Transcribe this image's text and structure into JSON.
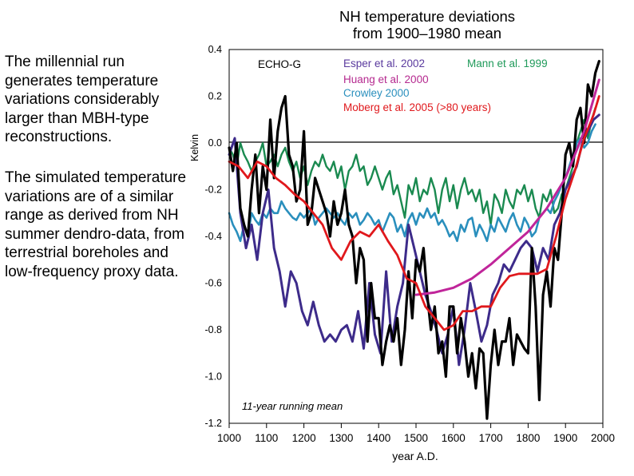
{
  "text": {
    "paragraph1": "The millennial run generates temperature variations considerably larger than  MBH-type reconstructions.",
    "paragraph2": "The simulated temperature variations are of a similar range as derived from NH summer dendro-data, from terrestrial boreholes and low-frequency proxy data."
  },
  "chart_data": {
    "type": "line",
    "title": "NH temperature deviations",
    "subtitle": "from 1900–1980 mean",
    "xlabel": "year A.D.",
    "ylabel": "Kelvin",
    "xlim": [
      1000,
      2000
    ],
    "ylim": [
      -1.2,
      0.4
    ],
    "xticks": [
      1000,
      1100,
      1200,
      1300,
      1400,
      1500,
      1600,
      1700,
      1800,
      1900,
      2000
    ],
    "yticks": [
      0.4,
      0.2,
      0.0,
      -0.2,
      -0.4,
      -0.6,
      -0.8,
      -1.0,
      -1.2
    ],
    "ytick_labels": [
      "0.4",
      "0.2",
      "0.0",
      "-0.2",
      "-0.4",
      "-0.6",
      "-0.8",
      "-1.0",
      "-1.2"
    ],
    "annotation": "11-year running mean",
    "series": [
      {
        "name": "ECHO-G",
        "color": "#000000",
        "legend_label": "ECHO-G",
        "legend_color": "#000000",
        "x": [
          1000,
          1010,
          1020,
          1030,
          1040,
          1050,
          1060,
          1070,
          1080,
          1090,
          1100,
          1110,
          1120,
          1130,
          1140,
          1150,
          1160,
          1170,
          1180,
          1190,
          1200,
          1210,
          1220,
          1230,
          1240,
          1250,
          1260,
          1270,
          1280,
          1290,
          1300,
          1310,
          1320,
          1330,
          1340,
          1350,
          1360,
          1370,
          1380,
          1390,
          1400,
          1410,
          1420,
          1430,
          1440,
          1450,
          1460,
          1470,
          1480,
          1490,
          1500,
          1510,
          1520,
          1530,
          1540,
          1550,
          1560,
          1570,
          1580,
          1590,
          1600,
          1610,
          1620,
          1630,
          1640,
          1650,
          1660,
          1670,
          1680,
          1690,
          1700,
          1710,
          1720,
          1730,
          1740,
          1750,
          1760,
          1770,
          1780,
          1790,
          1800,
          1810,
          1820,
          1830,
          1840,
          1850,
          1860,
          1870,
          1880,
          1890,
          1900,
          1910,
          1920,
          1930,
          1940,
          1950,
          1960,
          1970,
          1980,
          1990
        ],
        "y": [
          -0.02,
          -0.12,
          0.0,
          -0.28,
          -0.35,
          -0.4,
          -0.2,
          -0.05,
          -0.3,
          -0.1,
          -0.2,
          0.1,
          -0.15,
          0.05,
          0.15,
          0.2,
          -0.05,
          -0.1,
          -0.25,
          -0.2,
          0.05,
          -0.35,
          -0.3,
          -0.15,
          -0.2,
          -0.25,
          -0.3,
          -0.4,
          -0.25,
          -0.35,
          -0.3,
          -0.2,
          -0.35,
          -0.4,
          -0.6,
          -0.45,
          -0.5,
          -0.85,
          -0.6,
          -0.75,
          -0.75,
          -0.95,
          -0.85,
          -0.78,
          -0.85,
          -0.75,
          -0.95,
          -0.8,
          -0.55,
          -0.75,
          -0.5,
          -0.55,
          -0.45,
          -0.65,
          -0.8,
          -0.7,
          -0.9,
          -0.85,
          -1.0,
          -0.7,
          -0.7,
          -0.9,
          -0.75,
          -0.85,
          -1.0,
          -0.9,
          -1.05,
          -0.88,
          -0.9,
          -1.18,
          -0.95,
          -0.8,
          -0.95,
          -0.85,
          -0.85,
          -0.75,
          -0.95,
          -0.82,
          -0.85,
          -0.88,
          -0.9,
          -0.45,
          -0.7,
          -1.1,
          -0.65,
          -0.55,
          -0.7,
          -0.45,
          -0.5,
          -0.3,
          -0.05,
          0.0,
          -0.1,
          0.1,
          0.15,
          0.0,
          0.25,
          0.2,
          0.3,
          0.35
        ]
      },
      {
        "name": "Esper et al. 2002",
        "color": "#3d2b8a",
        "legend_label": "Esper et al. 2002",
        "legend_color": "#5a3a9e",
        "x": [
          1000,
          1015,
          1030,
          1045,
          1060,
          1075,
          1090,
          1105,
          1120,
          1135,
          1150,
          1165,
          1180,
          1195,
          1210,
          1225,
          1240,
          1255,
          1270,
          1285,
          1300,
          1315,
          1330,
          1345,
          1360,
          1375,
          1390,
          1405,
          1420,
          1435,
          1450,
          1465,
          1480,
          1495,
          1510,
          1525,
          1540,
          1555,
          1570,
          1585,
          1600,
          1615,
          1630,
          1645,
          1660,
          1675,
          1690,
          1705,
          1720,
          1735,
          1750,
          1765,
          1780,
          1795,
          1810,
          1825,
          1840,
          1855,
          1870,
          1885,
          1900,
          1915,
          1930,
          1945,
          1960,
          1975,
          1990
        ],
        "y": [
          -0.05,
          0.02,
          -0.3,
          -0.45,
          -0.35,
          -0.5,
          -0.3,
          -0.2,
          -0.45,
          -0.55,
          -0.7,
          -0.55,
          -0.6,
          -0.72,
          -0.78,
          -0.68,
          -0.78,
          -0.85,
          -0.82,
          -0.85,
          -0.8,
          -0.78,
          -0.85,
          -0.72,
          -0.88,
          -0.6,
          -0.82,
          -0.9,
          -0.55,
          -0.85,
          -0.7,
          -0.6,
          -0.35,
          -0.45,
          -0.55,
          -0.65,
          -0.72,
          -0.8,
          -0.9,
          -0.82,
          -0.7,
          -0.95,
          -0.8,
          -0.6,
          -0.72,
          -0.85,
          -0.78,
          -0.65,
          -0.6,
          -0.52,
          -0.55,
          -0.5,
          -0.45,
          -0.42,
          -0.45,
          -0.55,
          -0.45,
          -0.5,
          -0.35,
          -0.3,
          -0.2,
          -0.15,
          -0.1,
          0.0,
          0.05,
          0.1,
          0.12
        ]
      },
      {
        "name": "Mann et al. 1999",
        "color": "#1a8a50",
        "legend_label": "Mann et al. 1999",
        "legend_color": "#1f9a5a",
        "x": [
          1000,
          1010,
          1020,
          1030,
          1040,
          1050,
          1060,
          1070,
          1080,
          1090,
          1100,
          1110,
          1120,
          1130,
          1140,
          1150,
          1160,
          1170,
          1180,
          1190,
          1200,
          1210,
          1220,
          1230,
          1240,
          1250,
          1260,
          1270,
          1280,
          1290,
          1300,
          1310,
          1320,
          1330,
          1340,
          1350,
          1360,
          1370,
          1380,
          1390,
          1400,
          1410,
          1420,
          1430,
          1440,
          1450,
          1460,
          1470,
          1480,
          1490,
          1500,
          1510,
          1520,
          1530,
          1540,
          1550,
          1560,
          1570,
          1580,
          1590,
          1600,
          1610,
          1620,
          1630,
          1640,
          1650,
          1660,
          1670,
          1680,
          1690,
          1700,
          1710,
          1720,
          1730,
          1740,
          1750,
          1760,
          1770,
          1780,
          1790,
          1800,
          1810,
          1820,
          1830,
          1840,
          1850,
          1860,
          1870,
          1880,
          1890,
          1900,
          1910,
          1920,
          1930,
          1940,
          1950,
          1960,
          1970,
          1980
        ],
        "y": [
          -0.02,
          -0.05,
          -0.1,
          0.0,
          -0.05,
          -0.08,
          -0.12,
          -0.08,
          -0.05,
          0.0,
          -0.1,
          -0.08,
          -0.05,
          -0.1,
          -0.05,
          -0.02,
          -0.08,
          -0.12,
          -0.08,
          -0.15,
          -0.1,
          -0.18,
          -0.12,
          -0.08,
          -0.1,
          -0.05,
          -0.1,
          -0.12,
          -0.08,
          -0.15,
          -0.1,
          -0.2,
          -0.12,
          -0.1,
          -0.05,
          -0.12,
          -0.1,
          -0.18,
          -0.15,
          -0.1,
          -0.15,
          -0.2,
          -0.15,
          -0.12,
          -0.22,
          -0.18,
          -0.25,
          -0.32,
          -0.18,
          -0.22,
          -0.15,
          -0.25,
          -0.2,
          -0.22,
          -0.15,
          -0.2,
          -0.3,
          -0.2,
          -0.15,
          -0.25,
          -0.18,
          -0.28,
          -0.2,
          -0.15,
          -0.22,
          -0.2,
          -0.25,
          -0.2,
          -0.3,
          -0.25,
          -0.35,
          -0.22,
          -0.25,
          -0.3,
          -0.2,
          -0.25,
          -0.28,
          -0.2,
          -0.22,
          -0.18,
          -0.25,
          -0.2,
          -0.28,
          -0.32,
          -0.22,
          -0.25,
          -0.2,
          -0.3,
          -0.28,
          -0.22,
          -0.2,
          -0.15,
          -0.1,
          0.0,
          0.05,
          0.1,
          0.02,
          0.1,
          0.15
        ]
      },
      {
        "name": "Huang et al. 2000",
        "color": "#c0259a",
        "legend_label": "Huang et al. 2000",
        "legend_color": "#b5298f",
        "x": [
          1500,
          1550,
          1600,
          1650,
          1700,
          1750,
          1800,
          1850,
          1900,
          1950,
          1990
        ],
        "y": [
          -0.65,
          -0.64,
          -0.62,
          -0.58,
          -0.52,
          -0.45,
          -0.38,
          -0.28,
          -0.15,
          0.05,
          0.27
        ]
      },
      {
        "name": "Crowley 2000",
        "color": "#2a8fbd",
        "legend_label": "Crowley 2000",
        "legend_color": "#2a8fbd",
        "x": [
          1000,
          1010,
          1020,
          1030,
          1040,
          1050,
          1060,
          1070,
          1080,
          1090,
          1100,
          1110,
          1120,
          1130,
          1140,
          1150,
          1160,
          1170,
          1180,
          1190,
          1200,
          1210,
          1220,
          1230,
          1240,
          1250,
          1260,
          1270,
          1280,
          1290,
          1300,
          1310,
          1320,
          1330,
          1340,
          1350,
          1360,
          1370,
          1380,
          1390,
          1400,
          1410,
          1420,
          1430,
          1440,
          1450,
          1460,
          1470,
          1480,
          1490,
          1500,
          1510,
          1520,
          1530,
          1540,
          1550,
          1560,
          1570,
          1580,
          1590,
          1600,
          1610,
          1620,
          1630,
          1640,
          1650,
          1660,
          1670,
          1680,
          1690,
          1700,
          1710,
          1720,
          1730,
          1740,
          1750,
          1760,
          1770,
          1780,
          1790,
          1800,
          1810,
          1820,
          1830,
          1840,
          1850,
          1860,
          1870,
          1880,
          1890,
          1900,
          1910,
          1920,
          1930,
          1940,
          1950,
          1960,
          1970,
          1980
        ],
        "y": [
          -0.3,
          -0.35,
          -0.38,
          -0.42,
          -0.35,
          -0.4,
          -0.3,
          -0.33,
          -0.35,
          -0.3,
          -0.32,
          -0.28,
          -0.3,
          -0.3,
          -0.25,
          -0.28,
          -0.3,
          -0.32,
          -0.33,
          -0.3,
          -0.32,
          -0.3,
          -0.28,
          -0.35,
          -0.32,
          -0.3,
          -0.28,
          -0.3,
          -0.32,
          -0.3,
          -0.33,
          -0.35,
          -0.3,
          -0.32,
          -0.3,
          -0.35,
          -0.33,
          -0.3,
          -0.32,
          -0.35,
          -0.33,
          -0.38,
          -0.34,
          -0.3,
          -0.32,
          -0.38,
          -0.35,
          -0.4,
          -0.33,
          -0.3,
          -0.35,
          -0.3,
          -0.32,
          -0.28,
          -0.32,
          -0.3,
          -0.35,
          -0.33,
          -0.36,
          -0.4,
          -0.38,
          -0.42,
          -0.35,
          -0.38,
          -0.33,
          -0.32,
          -0.4,
          -0.35,
          -0.38,
          -0.42,
          -0.35,
          -0.38,
          -0.32,
          -0.35,
          -0.38,
          -0.33,
          -0.3,
          -0.35,
          -0.38,
          -0.32,
          -0.35,
          -0.4,
          -0.38,
          -0.32,
          -0.3,
          -0.28,
          -0.3,
          -0.25,
          -0.22,
          -0.18,
          -0.15,
          -0.1,
          -0.05,
          0.0,
          0.02,
          -0.02,
          0.0,
          0.05,
          0.08
        ]
      },
      {
        "name": "Moberg et al. 2005  (>80 years)",
        "color": "#e0181c",
        "legend_label": "Moberg et al. 2005  (>80 years)",
        "legend_color": "#e0181c",
        "x": [
          1000,
          1025,
          1050,
          1075,
          1100,
          1125,
          1150,
          1175,
          1200,
          1225,
          1250,
          1275,
          1300,
          1325,
          1350,
          1375,
          1400,
          1425,
          1450,
          1475,
          1500,
          1525,
          1550,
          1575,
          1600,
          1625,
          1650,
          1675,
          1700,
          1725,
          1750,
          1775,
          1800,
          1825,
          1850,
          1875,
          1900,
          1925,
          1950,
          1975,
          1990
        ],
        "y": [
          -0.08,
          -0.1,
          -0.15,
          -0.08,
          -0.1,
          -0.15,
          -0.18,
          -0.22,
          -0.25,
          -0.3,
          -0.35,
          -0.45,
          -0.5,
          -0.42,
          -0.38,
          -0.4,
          -0.35,
          -0.42,
          -0.48,
          -0.58,
          -0.6,
          -0.7,
          -0.75,
          -0.8,
          -0.78,
          -0.72,
          -0.72,
          -0.7,
          -0.7,
          -0.62,
          -0.57,
          -0.56,
          -0.56,
          -0.56,
          -0.54,
          -0.4,
          -0.24,
          -0.12,
          0.02,
          0.12,
          0.2
        ]
      }
    ]
  }
}
